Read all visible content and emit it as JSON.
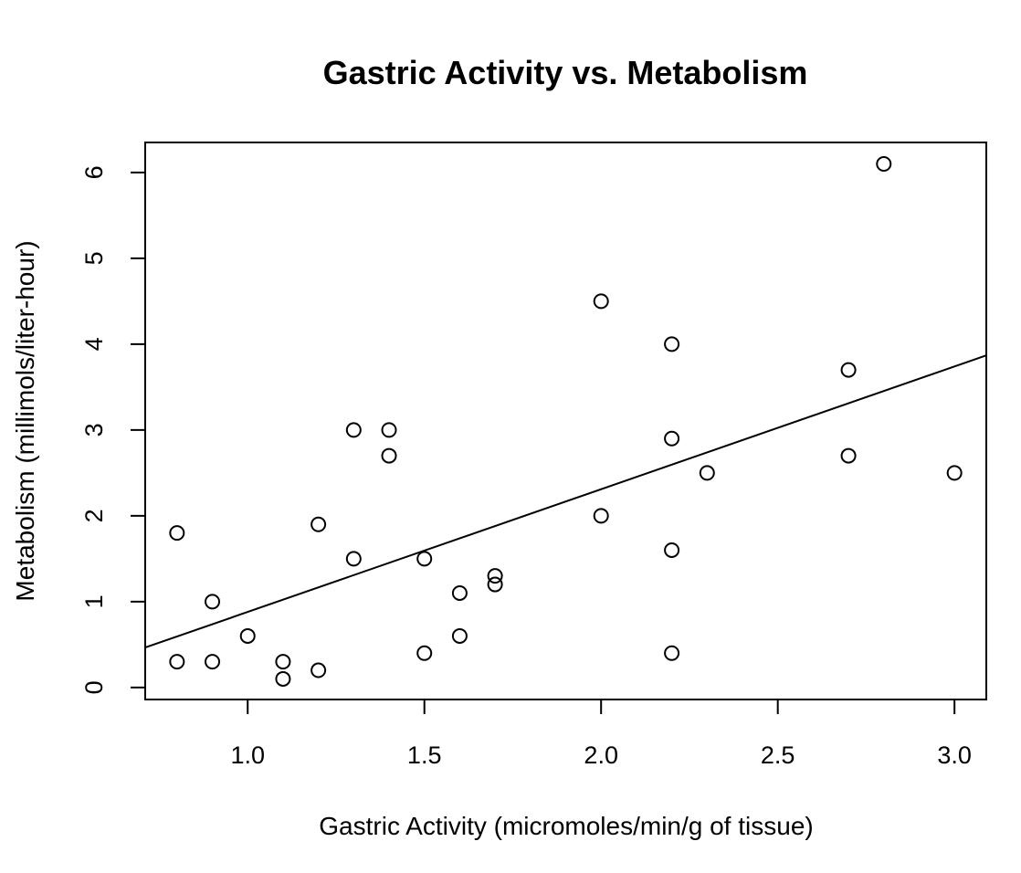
{
  "chart_data": {
    "type": "scatter",
    "title": "Gastric Activity vs. Metabolism",
    "xlabel": "Gastric Activity (micromoles/min/g of tissue)",
    "ylabel": "Metabolism (millimols/liter-hour)",
    "xlim": [
      0.71,
      3.09
    ],
    "ylim": [
      -0.14,
      6.35
    ],
    "x_ticks": [
      1.0,
      1.5,
      2.0,
      2.5,
      3.0
    ],
    "x_tick_labels": [
      "1.0",
      "1.5",
      "2.0",
      "2.5",
      "3.0"
    ],
    "y_ticks": [
      0,
      1,
      2,
      3,
      4,
      5,
      6
    ],
    "y_tick_labels": [
      "0",
      "1",
      "2",
      "3",
      "4",
      "5",
      "6"
    ],
    "grid": false,
    "marker": "open-circle",
    "series": [
      {
        "x": [
          0.8,
          0.8,
          0.9,
          0.9,
          1.0,
          1.1,
          1.1,
          1.2,
          1.2,
          1.3,
          1.3,
          1.4,
          1.4,
          1.5,
          1.5,
          1.6,
          1.6,
          1.7,
          1.7,
          2.0,
          2.0,
          2.2,
          2.2,
          2.2,
          2.2,
          2.3,
          2.7,
          2.7,
          2.8,
          3.0
        ],
        "y": [
          1.8,
          0.3,
          1.0,
          0.3,
          0.6,
          0.3,
          0.1,
          1.9,
          0.2,
          3.0,
          1.5,
          3.0,
          2.7,
          1.5,
          0.4,
          1.1,
          0.6,
          1.3,
          1.2,
          4.5,
          2.0,
          4.0,
          2.9,
          1.6,
          0.4,
          2.5,
          3.7,
          2.7,
          6.1,
          2.5
        ]
      }
    ],
    "fit_line": {
      "type": "linear",
      "intercept": -0.55,
      "slope": 1.43
    }
  }
}
